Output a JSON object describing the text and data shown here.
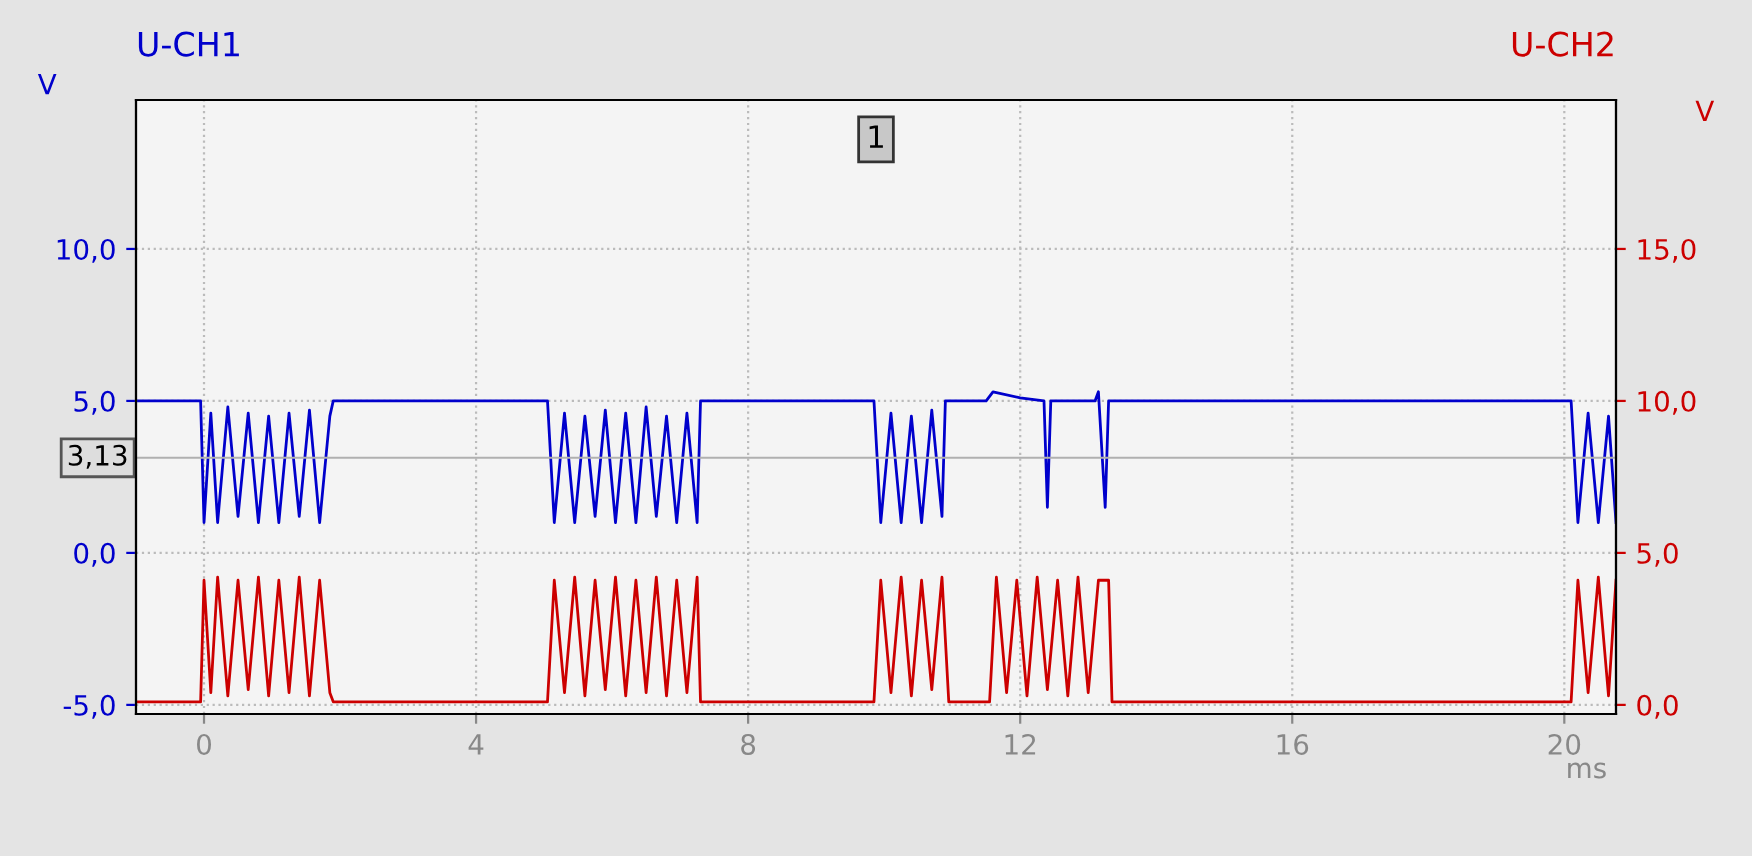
{
  "chart_data": {
    "type": "line",
    "xlabel": "ms",
    "ylabel": "V",
    "y2label": "V",
    "annotations": [
      "U-CH1",
      "U-CH2",
      "1"
    ],
    "xlim": [
      -1.0,
      20.76
    ],
    "xticks": [
      0,
      4,
      8,
      12,
      16,
      20
    ],
    "ylim": [
      -5.3,
      14.9
    ],
    "yticks": [
      {
        "value": -5,
        "label": "-5,0"
      },
      {
        "value": 0,
        "label": "0,0"
      },
      {
        "value": 5,
        "label": "5,0"
      },
      {
        "value": 10,
        "label": "10,0"
      }
    ],
    "y2lim": [
      -0.3,
      19.9
    ],
    "y2ticks": [
      {
        "value": 0,
        "label": "0,0"
      },
      {
        "value": 5,
        "label": "5,0"
      },
      {
        "value": 10,
        "label": "10,0"
      },
      {
        "value": 15,
        "label": "15,0"
      }
    ],
    "grid": true,
    "legend": false,
    "marker": "none",
    "line_style": "solid",
    "ref_lines": [
      {
        "axis": "y",
        "value": 3.13,
        "label": "3,13",
        "color": "#b0b0b0"
      }
    ],
    "series": [
      {
        "color": "#0000cc",
        "x": [
          -1.0,
          -0.05,
          0.0,
          0.1,
          0.2,
          0.35,
          0.5,
          0.65,
          0.8,
          0.95,
          1.1,
          1.25,
          1.4,
          1.55,
          1.7,
          1.85,
          1.9,
          5.05,
          5.15,
          5.3,
          5.45,
          5.6,
          5.75,
          5.9,
          6.05,
          6.2,
          6.35,
          6.5,
          6.65,
          6.8,
          6.95,
          7.1,
          7.25,
          7.3,
          9.85,
          9.95,
          10.1,
          10.25,
          10.4,
          10.55,
          10.7,
          10.85,
          10.9,
          11.5,
          11.6,
          12.0,
          12.35,
          12.4,
          12.45,
          13.1,
          13.15,
          13.25,
          13.3,
          20.1,
          20.2,
          20.35,
          20.5,
          20.65,
          20.76
        ],
        "values": [
          5.0,
          5.0,
          1.0,
          4.6,
          1.0,
          4.8,
          1.2,
          4.6,
          1.0,
          4.5,
          1.0,
          4.6,
          1.2,
          4.7,
          1.0,
          4.5,
          5.0,
          5.0,
          1.0,
          4.6,
          1.0,
          4.5,
          1.2,
          4.7,
          1.0,
          4.6,
          1.0,
          4.8,
          1.2,
          4.5,
          1.0,
          4.6,
          1.0,
          5.0,
          5.0,
          1.0,
          4.6,
          1.0,
          4.5,
          1.0,
          4.7,
          1.2,
          5.0,
          5.0,
          5.3,
          5.1,
          5.0,
          1.5,
          5.0,
          5.0,
          5.3,
          1.5,
          5.0,
          5.0,
          1.0,
          4.6,
          1.0,
          4.5,
          1.0
        ]
      },
      {
        "color": "#cc0000",
        "axis": "y2",
        "x": [
          -1.0,
          -0.05,
          0.0,
          0.1,
          0.2,
          0.35,
          0.5,
          0.65,
          0.8,
          0.95,
          1.1,
          1.25,
          1.4,
          1.55,
          1.7,
          1.85,
          1.9,
          5.05,
          5.15,
          5.3,
          5.45,
          5.6,
          5.75,
          5.9,
          6.05,
          6.2,
          6.35,
          6.5,
          6.65,
          6.8,
          6.95,
          7.1,
          7.25,
          7.3,
          9.85,
          9.95,
          10.1,
          10.25,
          10.4,
          10.55,
          10.7,
          10.85,
          10.95,
          11.55,
          11.65,
          11.8,
          11.95,
          12.1,
          12.25,
          12.4,
          12.55,
          12.7,
          12.85,
          13.0,
          13.15,
          13.3,
          13.35,
          20.1,
          20.2,
          20.35,
          20.5,
          20.65,
          20.76
        ],
        "values": [
          0.1,
          0.1,
          4.1,
          0.4,
          4.2,
          0.3,
          4.1,
          0.5,
          4.2,
          0.3,
          4.1,
          0.4,
          4.2,
          0.3,
          4.1,
          0.4,
          0.1,
          0.1,
          4.1,
          0.4,
          4.2,
          0.3,
          4.1,
          0.5,
          4.2,
          0.3,
          4.1,
          0.4,
          4.2,
          0.3,
          4.1,
          0.4,
          4.2,
          0.1,
          0.1,
          4.1,
          0.4,
          4.2,
          0.3,
          4.1,
          0.5,
          4.2,
          0.1,
          0.1,
          4.2,
          0.4,
          4.1,
          0.3,
          4.2,
          0.5,
          4.1,
          0.3,
          4.2,
          0.4,
          4.1,
          4.1,
          0.1,
          0.1,
          4.1,
          0.4,
          4.2,
          0.3,
          4.1
        ]
      }
    ]
  }
}
